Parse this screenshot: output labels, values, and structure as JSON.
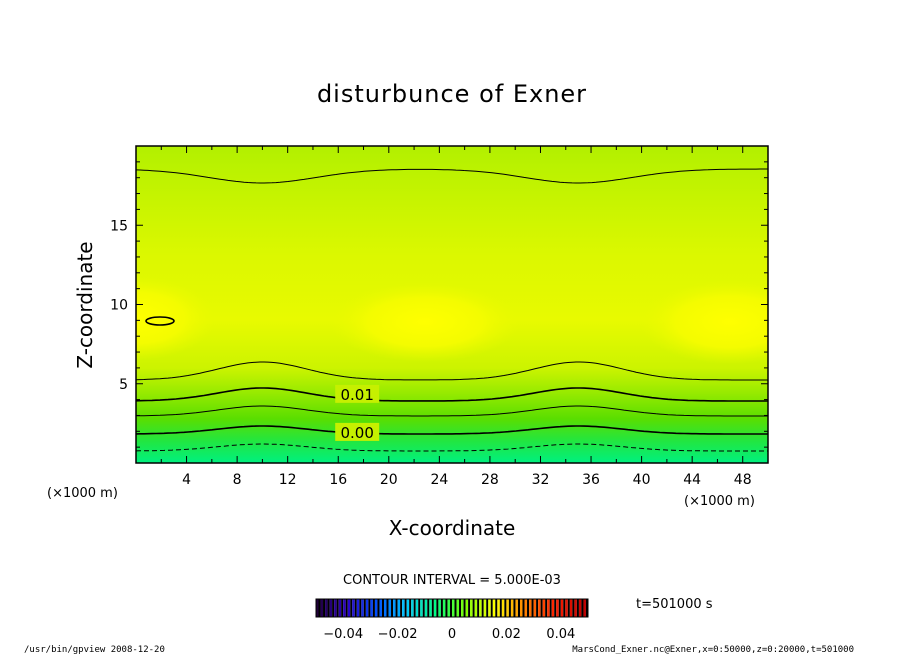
{
  "chart_data": {
    "type": "heatmap",
    "title": "disturbunce of Exner",
    "xlabel": "X-coordinate",
    "ylabel": "Z-coordinate",
    "x_unit_left": "(×1000 m)",
    "x_unit_right": "(×1000 m)",
    "xlim": [
      0,
      50
    ],
    "ylim": [
      0,
      20
    ],
    "x_ticks": [
      4,
      8,
      12,
      16,
      20,
      24,
      28,
      32,
      36,
      40,
      44,
      48
    ],
    "y_ticks": [
      5,
      10,
      15
    ],
    "contour_labels": [
      {
        "text": "0.01",
        "x": 17.5,
        "z": 4.3
      },
      {
        "text": "0.00",
        "x": 17.5,
        "z": 1.9
      }
    ],
    "contour_interval": "CONTOUR INTERVAL = 5.000E-03",
    "colorbar": {
      "range": [
        -0.05,
        0.05
      ],
      "tick_values": [
        -0.04,
        -0.02,
        0,
        0.02,
        0.04
      ],
      "tick_labels": [
        "−0.04",
        "−0.02",
        "0",
        "0.02",
        "0.04"
      ],
      "colors": [
        "#20003a",
        "#2a00c8",
        "#0050ff",
        "#00c8ff",
        "#00ff80",
        "#80ff00",
        "#ffff00",
        "#ff8000",
        "#ff2000",
        "#c00000"
      ]
    },
    "time_label": "t=501000 s",
    "footer_left": "/usr/bin/gpview   2008-12-20",
    "footer_right": "MarsCond_Exner.nc@Exner,x=0:50000,z=0:20000,t=501000"
  }
}
